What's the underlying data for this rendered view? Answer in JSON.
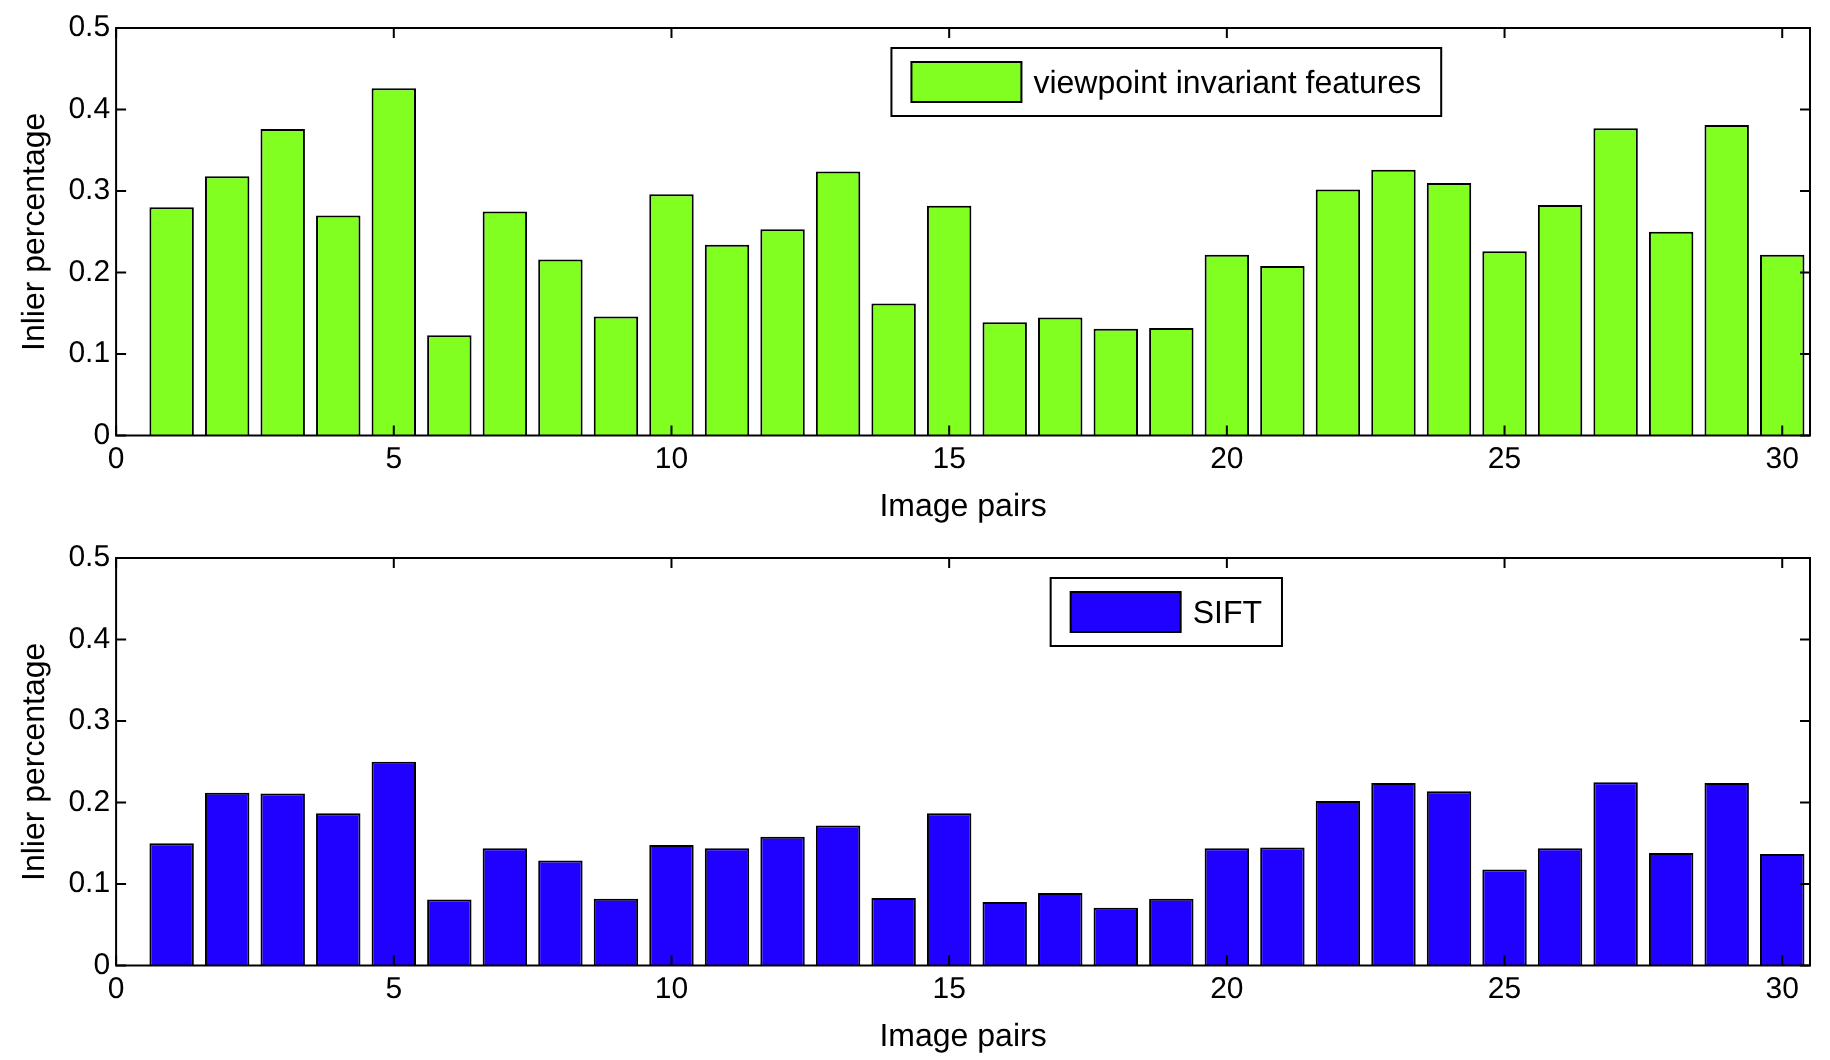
{
  "chart_data": [
    {
      "type": "bar",
      "xlabel": "Image pairs",
      "ylabel": "Inlier percentage",
      "x": [
        1,
        2,
        3,
        4,
        5,
        6,
        7,
        8,
        9,
        10,
        11,
        12,
        13,
        14,
        15,
        16,
        17,
        18,
        19,
        20,
        21,
        22,
        23,
        24,
        25,
        26,
        27,
        28,
        29,
        30
      ],
      "series": [
        {
          "name": "viewpoint invariant features",
          "color": "#80ff20",
          "values": [
            0.28,
            0.318,
            0.376,
            0.27,
            0.426,
            0.123,
            0.275,
            0.216,
            0.146,
            0.296,
            0.234,
            0.253,
            0.324,
            0.162,
            0.282,
            0.139,
            0.145,
            0.131,
            0.132,
            0.222,
            0.208,
            0.302,
            0.326,
            0.31,
            0.226,
            0.283,
            0.377,
            0.25,
            0.381,
            0.222
          ]
        }
      ],
      "xlim": [
        0,
        30.5
      ],
      "xticks": [
        0,
        5,
        10,
        15,
        20,
        25,
        30
      ],
      "ylim": [
        0,
        0.5
      ],
      "yticks": [
        0,
        0.1,
        0.2,
        0.3,
        0.4,
        0.5
      ],
      "grid": false,
      "legend": "top"
    },
    {
      "type": "bar",
      "xlabel": "Image pairs",
      "ylabel": "Inlier percentage",
      "x": [
        1,
        2,
        3,
        4,
        5,
        6,
        7,
        8,
        9,
        10,
        11,
        12,
        13,
        14,
        15,
        16,
        17,
        18,
        19,
        20,
        21,
        22,
        23,
        24,
        25,
        26,
        27,
        28,
        29,
        30
      ],
      "series": [
        {
          "name": "SIFT",
          "color": "#2000ff",
          "values": [
            0.15,
            0.212,
            0.211,
            0.187,
            0.25,
            0.081,
            0.144,
            0.129,
            0.082,
            0.148,
            0.144,
            0.158,
            0.172,
            0.083,
            0.187,
            0.078,
            0.089,
            0.071,
            0.082,
            0.144,
            0.145,
            0.202,
            0.224,
            0.214,
            0.118,
            0.144,
            0.225,
            0.138,
            0.224,
            0.137
          ]
        }
      ],
      "xlim": [
        0,
        30.5
      ],
      "xticks": [
        0,
        5,
        10,
        15,
        20,
        25,
        30
      ],
      "ylim": [
        0,
        0.5
      ],
      "yticks": [
        0,
        0.1,
        0.2,
        0.3,
        0.4,
        0.5
      ],
      "grid": false,
      "legend": "top"
    }
  ]
}
